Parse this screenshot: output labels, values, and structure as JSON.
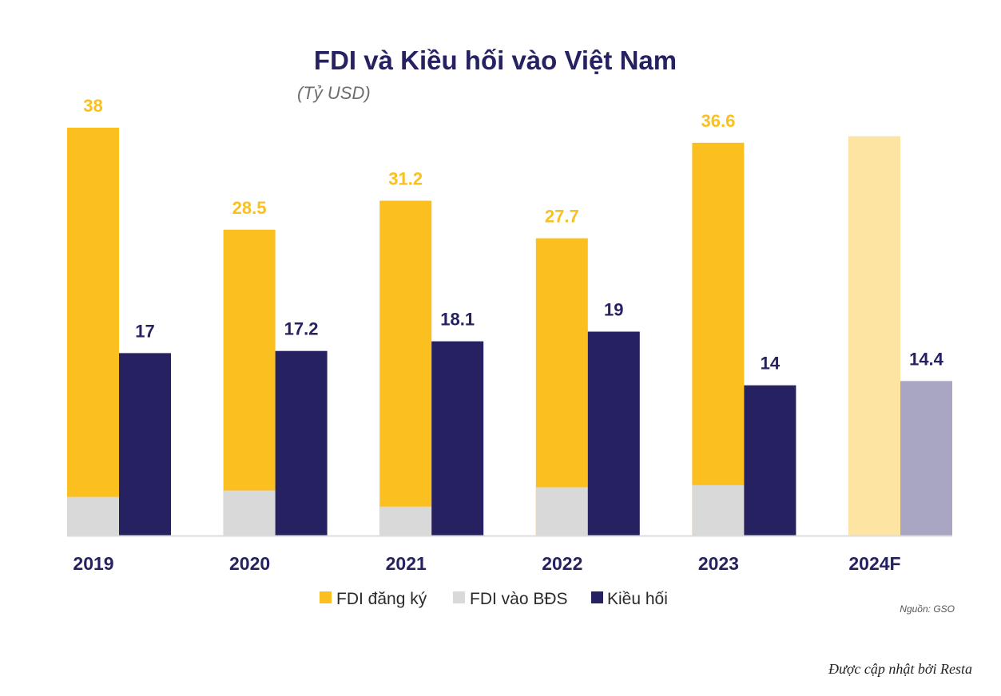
{
  "chart_data": {
    "type": "bar",
    "title": "FDI và Kiều hối vào Việt Nam",
    "subtitle": "(Tỷ USD)",
    "xlabel": "",
    "ylabel": "",
    "ylim": [
      0,
      38
    ],
    "grid": false,
    "categories": [
      "2019",
      "2020",
      "2021",
      "2022",
      "2023",
      "2024F"
    ],
    "series": [
      {
        "name": "FDI đăng ký",
        "color": "#fbbf1f",
        "forecast_color": "#fde4a3",
        "values": [
          38,
          28.5,
          31.2,
          27.7,
          36.6,
          37.2
        ],
        "labels": [
          "38",
          "28.5",
          "31.2",
          "27.7",
          "36.6",
          ""
        ]
      },
      {
        "name": "FDI vào BĐS",
        "color": "#d9d9d9",
        "stacked_within": "FDI đăng ký",
        "values": [
          3.6,
          4.2,
          2.7,
          4.5,
          4.7,
          0
        ]
      },
      {
        "name": "Kiều hối",
        "color": "#262261",
        "forecast_color": "#a9a6c4",
        "values": [
          17,
          17.2,
          18.1,
          19,
          14,
          14.4
        ],
        "labels": [
          "17",
          "17.2",
          "18.1",
          "19",
          "14",
          "14.4"
        ]
      }
    ],
    "forecast_category": "2024F",
    "legend": {
      "placement": "bottom-center",
      "entries": [
        {
          "label": "FDI đăng ký",
          "color": "#fbbf1f"
        },
        {
          "label": "FDI vào BĐS",
          "color": "#d9d9d9"
        },
        {
          "label": "Kiều hối",
          "color": "#262261"
        }
      ]
    },
    "source": "Nguồn: GSO",
    "credit": "Được cập nhật bởi Resta"
  }
}
